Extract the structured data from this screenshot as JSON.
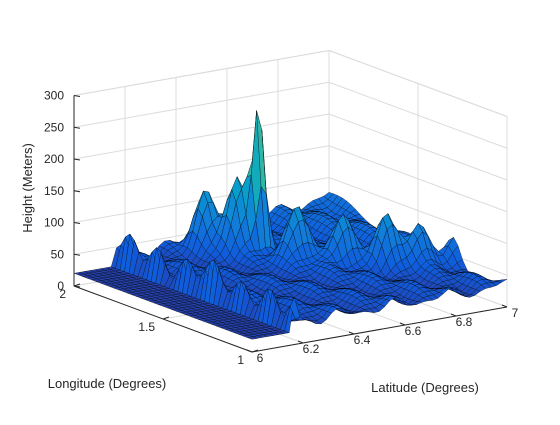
{
  "chart_data": {
    "type": "surface",
    "title": "",
    "xlabel": "Latitude (Degrees)",
    "ylabel": "Longitude (Degrees)",
    "zlabel": "Height (Meters)",
    "xlim": [
      6,
      7
    ],
    "ylim": [
      1,
      2
    ],
    "zlim": [
      0,
      300
    ],
    "xticks": [
      "6",
      "6.2",
      "6.4",
      "6.6",
      "6.8",
      "7"
    ],
    "yticks": [
      "1",
      "1.5",
      "2"
    ],
    "zticks": [
      "0",
      "50",
      "100",
      "150",
      "200",
      "250",
      "300"
    ],
    "colormap": "parula",
    "grid": true,
    "surface": {
      "plateau_height": 20,
      "plateau_latitude_range": [
        6,
        6.15
      ],
      "ridge_height": 100,
      "ridge_latitude": 6.15,
      "valley_height": 35,
      "main_peak": {
        "latitude": 6.55,
        "longitude": 1.75,
        "height": 315
      },
      "secondary_peaks": [
        {
          "latitude": 6.5,
          "longitude": 1.8,
          "height": 200
        },
        {
          "latitude": 6.6,
          "longitude": 1.6,
          "height": 180
        },
        {
          "latitude": 6.7,
          "longitude": 1.5,
          "height": 170
        },
        {
          "latitude": 6.8,
          "longitude": 1.4,
          "height": 160
        },
        {
          "latitude": 6.9,
          "longitude": 1.35,
          "height": 150
        },
        {
          "latitude": 6.45,
          "longitude": 1.9,
          "height": 175
        },
        {
          "latitude": 7.0,
          "longitude": 1.3,
          "height": 130
        }
      ]
    }
  }
}
